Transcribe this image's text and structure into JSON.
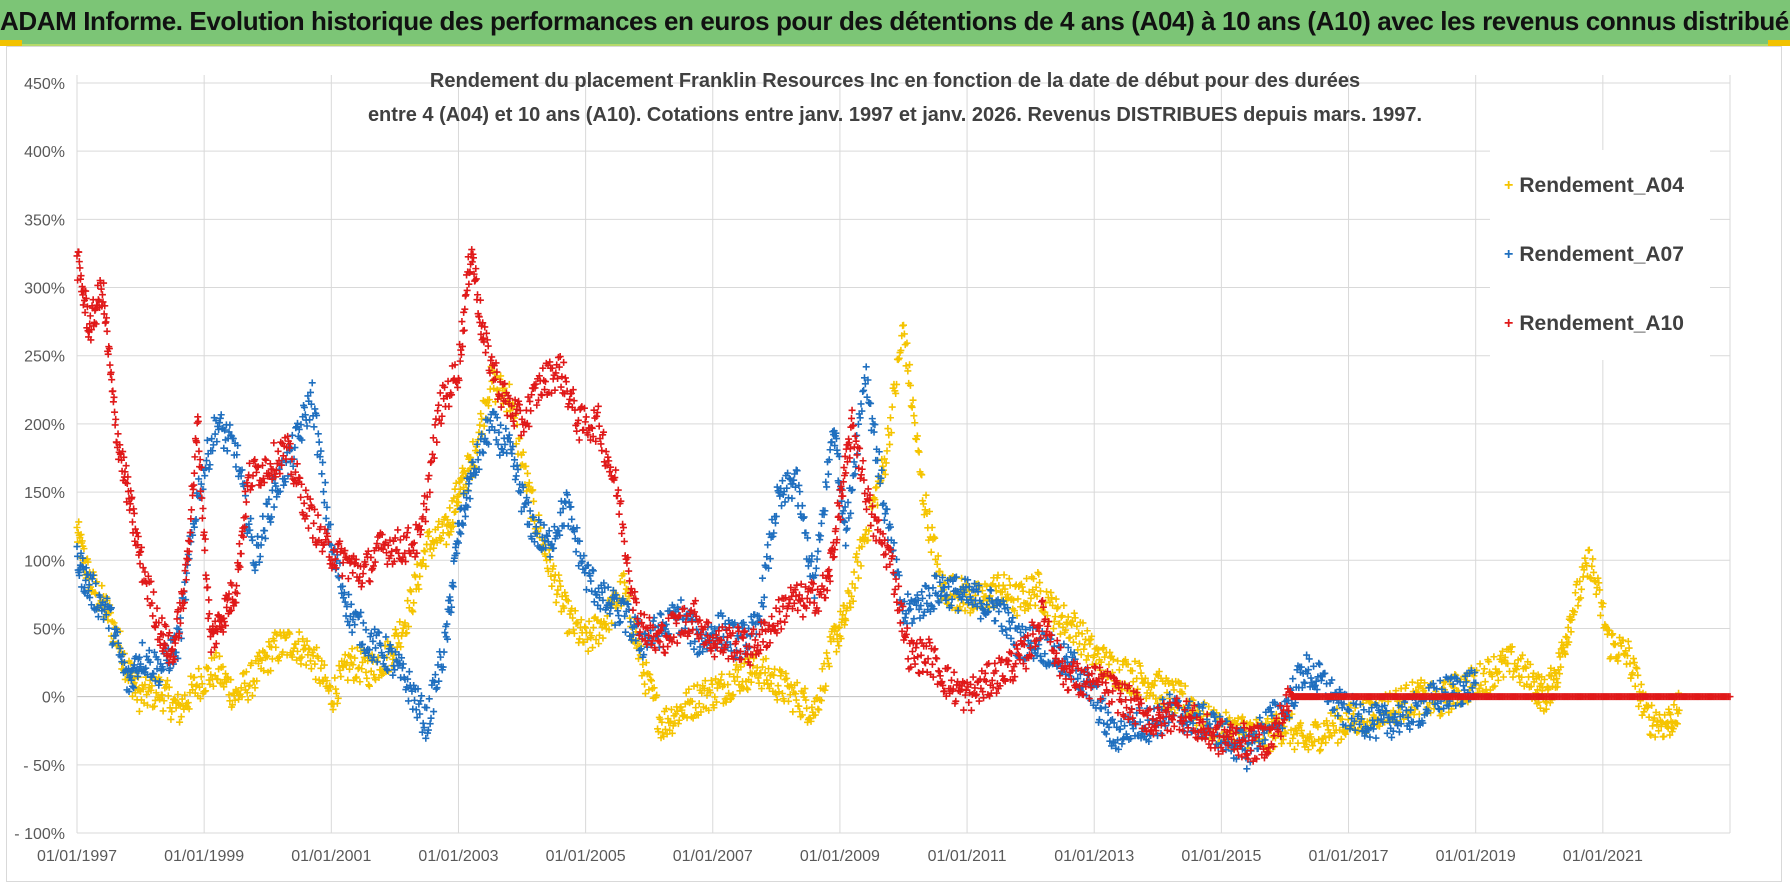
{
  "banner": {
    "title": "ADAM Informe. Evolution historique des performances en euros pour des détentions de 4 ans (A04) à 10 ans (A10) avec les revenus connus distribués"
  },
  "colors": {
    "banner_bg": "#7cc576",
    "A04": "#f5c400",
    "A07": "#1f6fbf",
    "A10": "#e01919"
  },
  "chart_data": {
    "type": "scatter",
    "title_line1": "Rendement du placement Franklin Resources Inc en fonction de la date de début pour des durées",
    "title_line2": "entre 4 (A04) et 10 ans (A10).  Cotations entre janv. 1997 et janv. 2026. Revenus DISTRIBUES depuis mars. 1997.",
    "xlabel": "",
    "ylabel": "",
    "xlim": [
      1997.0,
      2023.0
    ],
    "ylim": [
      -100,
      450
    ],
    "y_ticks": [
      -100,
      -50,
      0,
      50,
      100,
      150,
      200,
      250,
      300,
      350,
      400,
      450
    ],
    "y_tick_labels": [
      "- 100%",
      "- 50%",
      "0%",
      "50%",
      "100%",
      "150%",
      "200%",
      "250%",
      "300%",
      "350%",
      "400%",
      "450%"
    ],
    "x_ticks": [
      1997,
      1999,
      2001,
      2003,
      2005,
      2007,
      2009,
      2011,
      2013,
      2015,
      2017,
      2019,
      2021
    ],
    "x_tick_labels": [
      "01/01/1997",
      "01/01/1999",
      "01/01/2001",
      "01/01/2003",
      "01/01/2005",
      "01/01/2007",
      "01/01/2009",
      "01/01/2011",
      "01/01/2013",
      "01/01/2015",
      "01/01/2017",
      "01/01/2019",
      "01/01/2021"
    ],
    "legend_position": "top-right",
    "series": [
      {
        "name": "Rendement_A04",
        "color": "#f5c400",
        "x": [
          1997.0,
          1997.2,
          1997.5,
          1997.8,
          1998.0,
          1998.3,
          1998.6,
          1998.9,
          1999.2,
          1999.5,
          1999.8,
          2000.1,
          2000.4,
          2000.7,
          2001.0,
          2001.3,
          2001.6,
          2001.9,
          2002.2,
          2002.5,
          2002.8,
          2003.0,
          2003.2,
          2003.5,
          2003.8,
          2004.1,
          2004.4,
          2004.7,
          2005.0,
          2005.3,
          2005.6,
          2005.9,
          2006.2,
          2006.5,
          2006.8,
          2007.1,
          2007.4,
          2007.7,
          2008.0,
          2008.3,
          2008.6,
          2008.9,
          2009.1,
          2009.4,
          2009.7,
          2010.0,
          2010.3,
          2010.6,
          2010.9,
          2011.2,
          2011.5,
          2011.8,
          2012.1,
          2012.4,
          2012.7,
          2013.0,
          2013.3,
          2013.6,
          2013.9,
          2014.2,
          2014.5,
          2014.8,
          2015.1,
          2015.4,
          2015.7,
          2016.0,
          2016.3,
          2016.6,
          2016.9,
          2017.2,
          2017.5,
          2017.8,
          2018.1,
          2018.4,
          2018.7,
          2019.0,
          2019.3,
          2019.6,
          2019.9,
          2020.1,
          2020.3,
          2020.5,
          2020.8,
          2021.1,
          2021.4,
          2021.7,
          2022.0,
          2022.2
        ],
        "values": [
          120,
          85,
          60,
          20,
          0,
          5,
          -10,
          10,
          20,
          0,
          15,
          35,
          40,
          30,
          0,
          25,
          20,
          30,
          60,
          110,
          120,
          150,
          170,
          230,
          220,
          150,
          100,
          60,
          40,
          55,
          80,
          20,
          -20,
          -10,
          0,
          5,
          15,
          20,
          10,
          0,
          -10,
          40,
          60,
          120,
          170,
          270,
          150,
          80,
          75,
          70,
          80,
          70,
          80,
          60,
          50,
          30,
          20,
          15,
          10,
          0,
          -5,
          -20,
          -25,
          -25,
          -30,
          -20,
          -35,
          -25,
          -20,
          -15,
          -10,
          -5,
          0,
          -5,
          5,
          10,
          20,
          25,
          10,
          0,
          20,
          60,
          100,
          40,
          30,
          -15,
          -20,
          -10
        ]
      },
      {
        "name": "Rendement_A07",
        "color": "#1f6fbf",
        "x": [
          1997.0,
          1997.2,
          1997.5,
          1997.8,
          1998.0,
          1998.3,
          1998.6,
          1998.9,
          1999.2,
          1999.5,
          1999.8,
          2000.1,
          2000.4,
          2000.7,
          2001.0,
          2001.3,
          2001.6,
          2001.9,
          2002.2,
          2002.5,
          2002.8,
          2003.0,
          2003.2,
          2003.5,
          2003.8,
          2004.1,
          2004.4,
          2004.7,
          2005.0,
          2005.3,
          2005.6,
          2005.9,
          2006.2,
          2006.5,
          2006.8,
          2007.1,
          2007.4,
          2007.7,
          2008.0,
          2008.3,
          2008.6,
          2008.9,
          2009.1,
          2009.4,
          2009.7,
          2010.0,
          2010.3,
          2010.6,
          2010.9,
          2011.2,
          2011.5,
          2011.8,
          2012.1,
          2012.4,
          2012.7,
          2013.0,
          2013.3,
          2013.6,
          2013.9,
          2014.2,
          2014.5,
          2014.8,
          2015.1,
          2015.4,
          2015.7,
          2016.0,
          2016.3,
          2016.6,
          2016.9,
          2017.2,
          2017.5,
          2017.8,
          2018.1,
          2018.4,
          2018.7,
          2019.0
        ],
        "values": [
          100,
          80,
          60,
          10,
          30,
          20,
          40,
          150,
          200,
          180,
          100,
          150,
          180,
          220,
          110,
          60,
          40,
          30,
          10,
          -20,
          40,
          120,
          160,
          200,
          180,
          130,
          110,
          140,
          90,
          70,
          60,
          40,
          50,
          60,
          40,
          50,
          40,
          50,
          140,
          160,
          80,
          200,
          120,
          240,
          140,
          60,
          70,
          80,
          75,
          70,
          65,
          40,
          40,
          30,
          20,
          0,
          -30,
          -20,
          -20,
          -10,
          -15,
          -20,
          -30,
          -40,
          -20,
          -10,
          20,
          10,
          -10,
          -15,
          -20,
          -15,
          -10,
          0,
          5,
          10
        ]
      },
      {
        "name": "Rendement_A10",
        "color": "#e01919",
        "x": [
          1997.0,
          1997.2,
          1997.4,
          1997.6,
          1997.8,
          1998.0,
          1998.3,
          1998.5,
          1998.7,
          1998.9,
          1999.1,
          1999.3,
          1999.5,
          1999.7,
          2000.0,
          2000.3,
          2000.6,
          2000.9,
          2001.2,
          2001.5,
          2001.8,
          2002.1,
          2002.4,
          2002.7,
          2003.0,
          2003.2,
          2003.4,
          2003.7,
          2004.0,
          2004.3,
          2004.6,
          2004.9,
          2005.2,
          2005.5,
          2005.8,
          2006.1,
          2006.4,
          2006.7,
          2007.0,
          2007.3,
          2007.6,
          2007.9,
          2008.2,
          2008.5,
          2008.8,
          2009.0,
          2009.2,
          2009.5,
          2009.8,
          2010.1,
          2010.4,
          2010.7,
          2011.0,
          2011.3,
          2011.6,
          2011.9,
          2012.2,
          2012.5,
          2012.8,
          2013.1,
          2013.4,
          2013.7,
          2014.0,
          2014.3,
          2014.6,
          2014.9,
          2015.2,
          2015.5,
          2015.8,
          2016.1,
          2016.5,
          2017.0,
          2017.5,
          2018.0,
          2018.5,
          2019.0,
          2019.5,
          2020.0,
          2020.5,
          2021.0,
          2021.5,
          2022.0,
          2022.5,
          2023.0
        ],
        "values": [
          320,
          270,
          300,
          200,
          150,
          100,
          50,
          30,
          80,
          200,
          40,
          60,
          80,
          160,
          170,
          180,
          140,
          110,
          100,
          90,
          110,
          110,
          115,
          210,
          240,
          330,
          260,
          220,
          200,
          230,
          240,
          200,
          200,
          150,
          60,
          40,
          50,
          60,
          40,
          40,
          35,
          50,
          70,
          70,
          80,
          140,
          200,
          130,
          100,
          30,
          30,
          10,
          0,
          10,
          20,
          30,
          60,
          20,
          10,
          10,
          0,
          -10,
          -20,
          -10,
          -20,
          -30,
          -30,
          -35,
          -30,
          0,
          0,
          0,
          0,
          0,
          0,
          0,
          0,
          0,
          0,
          0,
          0,
          0,
          0,
          0
        ]
      }
    ]
  }
}
